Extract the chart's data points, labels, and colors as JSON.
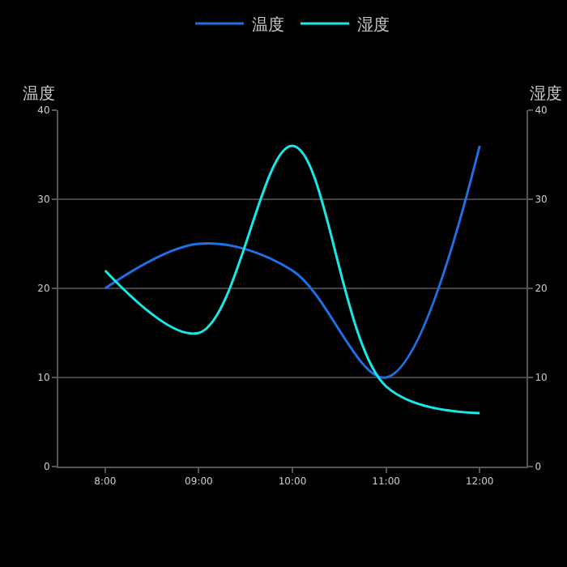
{
  "chart_data": {
    "type": "line",
    "categories": [
      "8:00",
      "09:00",
      "10:00",
      "11:00",
      "12:00"
    ],
    "series": [
      {
        "name": "温度",
        "color": "#1f6fe5",
        "values": [
          20,
          25,
          22,
          10,
          36
        ]
      },
      {
        "name": "湿度",
        "color": "#17e8e8",
        "values": [
          22,
          15,
          36,
          9,
          6
        ],
        "axis": "y2"
      }
    ],
    "ylabel": "温度",
    "y2label": "湿度",
    "ylim": [
      0,
      40
    ],
    "yticks": [
      0,
      10,
      20,
      30,
      40
    ],
    "y2lim": [
      0,
      40
    ],
    "y2ticks": [
      0,
      10,
      20,
      30,
      40
    ],
    "grid": "y",
    "legend": "top",
    "marker": "none",
    "line_style": "solid"
  }
}
